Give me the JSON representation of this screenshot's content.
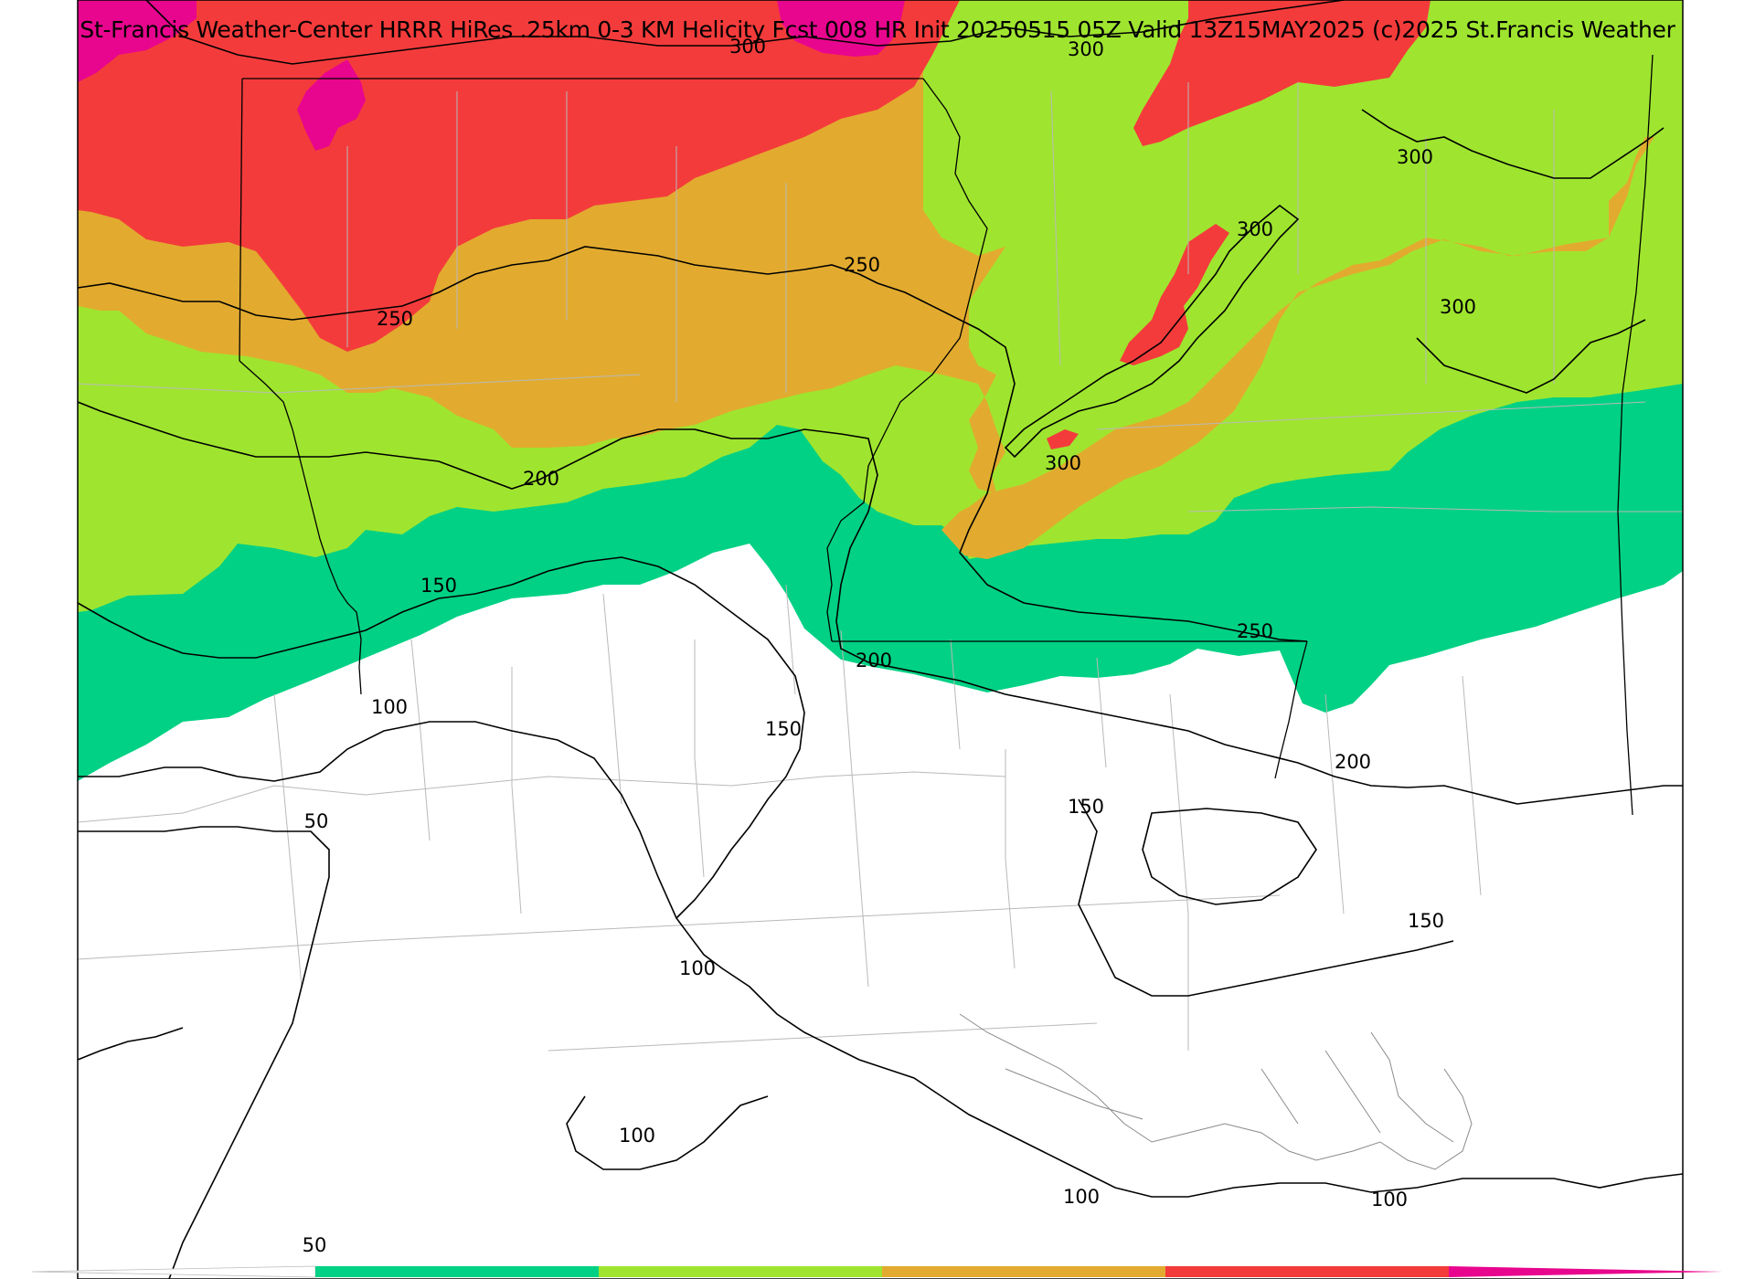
{
  "header": {
    "title": "St-Francis Weather-Center HRRR HiRes .25km 0-3 KM Helicity Fcst 008 HR Init 20250515 05Z  Valid 13Z15MAY2025    (c)2025 St.Francis Weather"
  },
  "colors": {
    "band_0_50": "#ffffff",
    "band_150_200": "#00d184",
    "band_200_250": "#9fe52f",
    "band_250_300": "#e2ab2f",
    "band_300_400": "#f43b3b",
    "band_400_plus": "#e8068e",
    "contour": "#000000",
    "county_lines": "#b9b9b9"
  },
  "map": {
    "field": "0-3 km storm-relative helicity",
    "contour_labels": [
      "300",
      "300",
      "300",
      "300",
      "300",
      "300",
      "250",
      "250",
      "250",
      "200",
      "200",
      "200",
      "150",
      "150",
      "150",
      "150",
      "100",
      "100",
      "100",
      "100",
      "100",
      "50",
      "50"
    ]
  },
  "colorbar": {
    "colors": [
      "#ffffff",
      "#00d184",
      "#9fe52f",
      "#e2ab2f",
      "#f43b3b",
      "#e8068e"
    ]
  }
}
